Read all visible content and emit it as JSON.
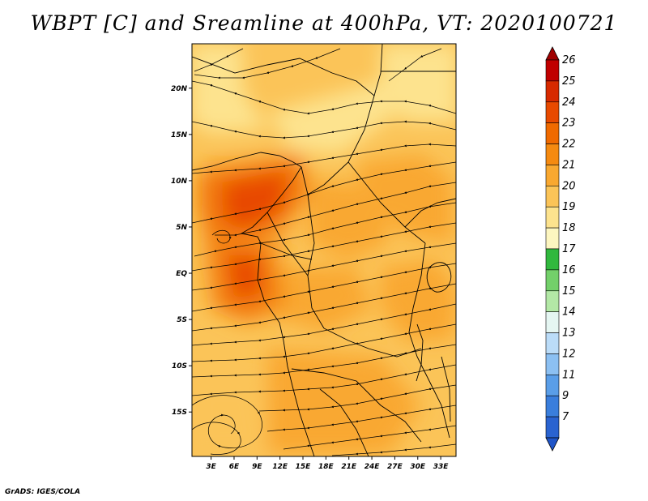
{
  "title": "WBPT [C] and Sreamline at 400hPa, VT: 2020100721",
  "credit": "GrADS: IGES/COLA",
  "map": {
    "lat_labels": [
      "20N",
      "15N",
      "10N",
      "5N",
      "EQ",
      "5S",
      "10S",
      "15S"
    ],
    "lat_values": [
      20,
      15,
      10,
      5,
      0,
      -5,
      -10,
      -15
    ],
    "lon_labels": [
      "3E",
      "6E",
      "9E",
      "12E",
      "15E",
      "18E",
      "21E",
      "24E",
      "27E",
      "30E",
      "33E"
    ],
    "lon_values": [
      3,
      6,
      9,
      12,
      15,
      18,
      21,
      24,
      27,
      30,
      33
    ],
    "lon_range": [
      0.5,
      35
    ],
    "lat_range": [
      -19.8,
      24.8
    ]
  },
  "colorbar": {
    "labels": [
      "26",
      "25",
      "24",
      "23",
      "22",
      "21",
      "20",
      "19",
      "18",
      "17",
      "16",
      "15",
      "14",
      "13",
      "12",
      "11",
      "9",
      "7"
    ],
    "colors": [
      "#c00000",
      "#d72a00",
      "#e84a00",
      "#f06a00",
      "#f58a10",
      "#f9a830",
      "#fbc458",
      "#fde38e",
      "#fdf6c0",
      "#31b83e",
      "#73d06a",
      "#b3e8a6",
      "#e5f6f2",
      "#bbdcf8",
      "#8cc0f2",
      "#5a9ee8",
      "#3a7edc",
      "#2a63d0"
    ],
    "top_color": "#a00000",
    "bottom_color": "#1f55c8"
  }
}
